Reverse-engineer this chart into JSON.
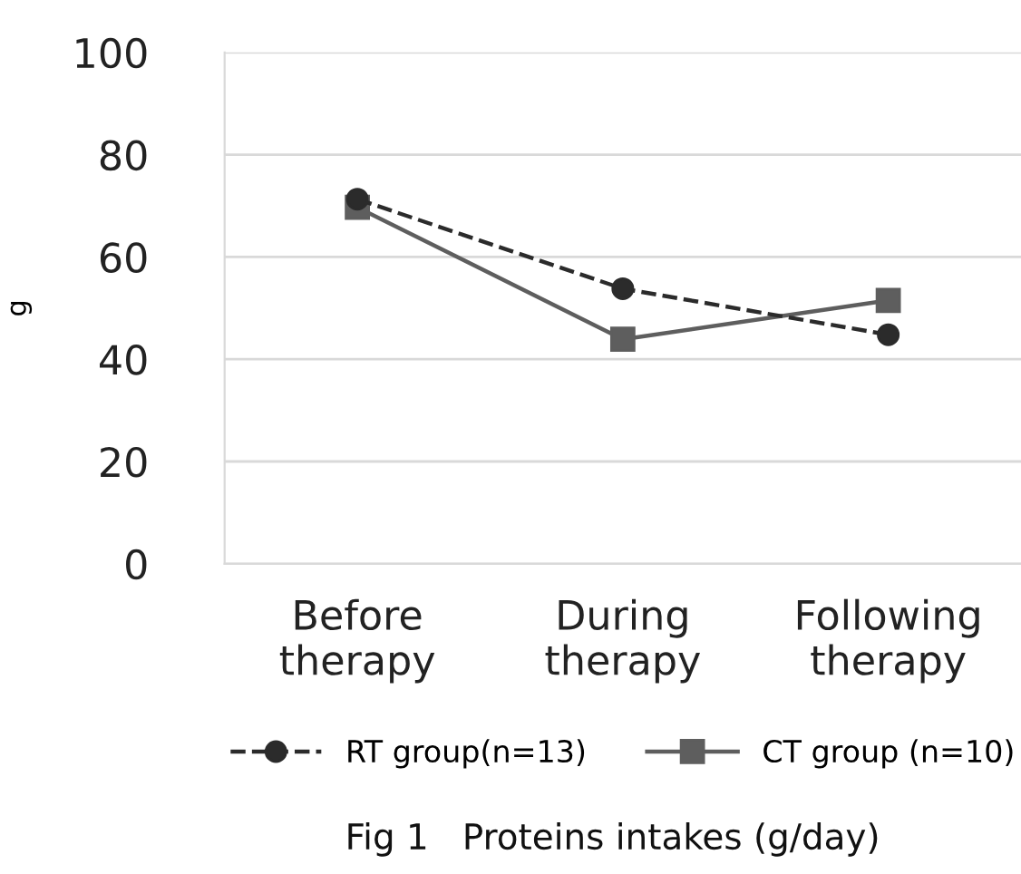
{
  "chart_data": {
    "type": "line",
    "title": "Fig 1   Proteins intakes (g/day)",
    "ylabel": "g",
    "categories": [
      "Before\ntherapy",
      "During\ntherapy",
      "Following\ntherapy"
    ],
    "series": [
      {
        "name": "RT group(n=13)",
        "color": "#2b2b2b",
        "values": [
          71.3,
          53.8,
          44.8
        ],
        "marker": "circle",
        "line_style": "dashed"
      },
      {
        "name": "CT group (n=10)",
        "color": "#5e5e5e",
        "values": [
          69.7,
          43.9,
          51.5
        ],
        "marker": "square",
        "line_style": "solid"
      }
    ],
    "ylim": [
      0,
      100
    ],
    "yticks": [
      0,
      20,
      40,
      60,
      80,
      100
    ],
    "grid": "y",
    "legend": "bottom"
  }
}
